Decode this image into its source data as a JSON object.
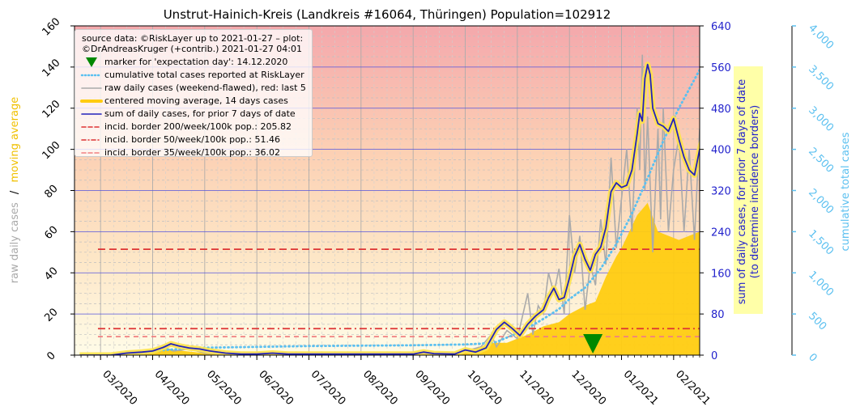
{
  "chart_data": {
    "type": "line",
    "title": "Unstrut-Hainich-Kreis (Landkreis #16064, Thüringen) Population=102912",
    "xlabel": "",
    "x_tick_labels": [
      "03/2020",
      "04/2020",
      "05/2020",
      "06/2020",
      "07/2020",
      "08/2020",
      "09/2020",
      "10/2020",
      "11/2020",
      "12/2020",
      "01/2021",
      "02/2021"
    ],
    "x_range_months": [
      -0.5,
      11.5
    ],
    "left_axis": {
      "label_raw": "raw daily cases",
      "label_sep": "/",
      "label_avg": "moving average",
      "ylim": [
        0,
        160
      ],
      "ticks": [
        0,
        20,
        40,
        60,
        80,
        100,
        120,
        140,
        160
      ]
    },
    "right_axis_1": {
      "label_line1": "sum of daily cases, for prior 7 days of date",
      "label_line2": "(to determine incidence borders)",
      "ylim": [
        0,
        640
      ],
      "ticks": [
        0,
        80,
        160,
        240,
        320,
        400,
        480,
        560,
        640
      ],
      "color": "#2222cc"
    },
    "right_axis_2": {
      "label": "cumulative total cases",
      "ylim": [
        0,
        4000
      ],
      "ticks": [
        0,
        500,
        1000,
        1500,
        2000,
        2500,
        3000,
        3500,
        4000
      ],
      "tick_labels": [
        "0",
        "500",
        "1,000",
        "1,500",
        "2,000",
        "2,500",
        "3,000",
        "3,500",
        "4,000"
      ],
      "color": "#5bc0f0"
    },
    "legend": {
      "source_line1": "source data: ©RiskLayer up to 2021-01-27 – plot:",
      "source_line2": "©DrAndreasKruger (+contrib.) 2021-01-27 04:01",
      "entries": [
        {
          "label": "marker for 'expectation day': 14.12.2020",
          "color": "#008800",
          "kind": "triangle"
        },
        {
          "label": "cumulative total cases reported at RiskLayer",
          "color": "#5bc0f0",
          "kind": "dotted"
        },
        {
          "label": "raw daily cases (weekend-flawed), red: last 5",
          "color": "#aaaaaa",
          "kind": "line"
        },
        {
          "label": "centered moving average, 14 days cases",
          "color": "#ffcc11",
          "kind": "thick"
        },
        {
          "label": "sum of daily cases, for prior 7 days of date",
          "color": "#2222bb",
          "kind": "line"
        },
        {
          "label": "incid. border 200/week/100k pop.: 205.82",
          "color": "#dd3333",
          "kind": "dashed"
        },
        {
          "label": "incid. border 50/week/100k pop.: 51.46",
          "color": "#dd3333",
          "kind": "dashdot"
        },
        {
          "label": "incid. border 35/week/100k pop.: 36.02",
          "color": "#f08080",
          "kind": "dashed"
        }
      ]
    },
    "incidence_borders_7day_sum": [
      205.82,
      51.46,
      36.02
    ],
    "expectation_day_month": 9.45,
    "series": [
      {
        "name": "sum of daily cases, for prior 7 days of date",
        "axis": "right_1",
        "color": "#2222bb",
        "points": [
          [
            -0.4,
            0
          ],
          [
            0.2,
            0
          ],
          [
            0.5,
            4
          ],
          [
            0.8,
            6
          ],
          [
            1.0,
            8
          ],
          [
            1.2,
            15
          ],
          [
            1.35,
            22
          ],
          [
            1.5,
            18
          ],
          [
            1.7,
            14
          ],
          [
            1.9,
            12
          ],
          [
            2.1,
            8
          ],
          [
            2.4,
            4
          ],
          [
            2.7,
            2
          ],
          [
            3.0,
            2
          ],
          [
            3.3,
            4
          ],
          [
            3.6,
            2
          ],
          [
            4.0,
            2
          ],
          [
            4.5,
            2
          ],
          [
            5.0,
            2
          ],
          [
            5.5,
            2
          ],
          [
            6.0,
            2
          ],
          [
            6.2,
            6
          ],
          [
            6.4,
            3
          ],
          [
            6.8,
            2
          ],
          [
            7.0,
            10
          ],
          [
            7.2,
            6
          ],
          [
            7.4,
            14
          ],
          [
            7.6,
            50
          ],
          [
            7.75,
            64
          ],
          [
            7.9,
            52
          ],
          [
            8.05,
            38
          ],
          [
            8.2,
            60
          ],
          [
            8.35,
            76
          ],
          [
            8.5,
            88
          ],
          [
            8.6,
            112
          ],
          [
            8.7,
            130
          ],
          [
            8.8,
            108
          ],
          [
            8.9,
            112
          ],
          [
            9.0,
            150
          ],
          [
            9.1,
            192
          ],
          [
            9.2,
            215
          ],
          [
            9.3,
            186
          ],
          [
            9.4,
            165
          ],
          [
            9.5,
            196
          ],
          [
            9.6,
            210
          ],
          [
            9.7,
            248
          ],
          [
            9.75,
            284
          ],
          [
            9.8,
            318
          ],
          [
            9.9,
            335
          ],
          [
            10.0,
            326
          ],
          [
            10.1,
            330
          ],
          [
            10.2,
            360
          ],
          [
            10.3,
            430
          ],
          [
            10.35,
            470
          ],
          [
            10.4,
            455
          ],
          [
            10.45,
            538
          ],
          [
            10.5,
            565
          ],
          [
            10.55,
            545
          ],
          [
            10.6,
            480
          ],
          [
            10.7,
            450
          ],
          [
            10.8,
            445
          ],
          [
            10.9,
            435
          ],
          [
            11.0,
            460
          ],
          [
            11.1,
            420
          ],
          [
            11.2,
            385
          ],
          [
            11.3,
            360
          ],
          [
            11.4,
            350
          ],
          [
            11.5,
            400
          ],
          [
            11.6,
            435
          ],
          [
            11.7,
            410
          ],
          [
            11.8,
            440
          ],
          [
            11.9,
            420
          ],
          [
            12.0,
            445
          ],
          [
            12.1,
            360
          ],
          [
            12.15,
            420
          ],
          [
            12.25,
            270
          ],
          [
            12.35,
            225
          ]
        ]
      },
      {
        "name": "centered moving average, 14 days cases",
        "axis": "left",
        "color": "#ffcc11",
        "points": [
          [
            0.2,
            0
          ],
          [
            0.6,
            1
          ],
          [
            1.0,
            2
          ],
          [
            1.3,
            3
          ],
          [
            1.6,
            2
          ],
          [
            2.0,
            1
          ],
          [
            2.5,
            0.5
          ],
          [
            3.0,
            0.5
          ],
          [
            4.0,
            0.3
          ],
          [
            5.0,
            0.3
          ],
          [
            6.0,
            0.5
          ],
          [
            7.0,
            1
          ],
          [
            7.5,
            6
          ],
          [
            7.8,
            6
          ],
          [
            8.2,
            10
          ],
          [
            8.5,
            14
          ],
          [
            8.8,
            16
          ],
          [
            9.0,
            20
          ],
          [
            9.3,
            24
          ],
          [
            9.5,
            26
          ],
          [
            9.7,
            38
          ],
          [
            9.9,
            48
          ],
          [
            10.0,
            52
          ],
          [
            10.3,
            68
          ],
          [
            10.5,
            74
          ],
          [
            10.7,
            60
          ],
          [
            10.9,
            58
          ],
          [
            11.1,
            56
          ],
          [
            11.3,
            58
          ],
          [
            11.5,
            60
          ],
          [
            11.7,
            62
          ],
          [
            11.9,
            60
          ],
          [
            12.0,
            58
          ],
          [
            12.1,
            52
          ]
        ]
      },
      {
        "name": "raw daily cases (weekend-flawed), red: last 5",
        "axis": "left",
        "color": "#aaaaaa",
        "points": [
          [
            0.2,
            0
          ],
          [
            0.6,
            2
          ],
          [
            0.9,
            1
          ],
          [
            1.2,
            4
          ],
          [
            1.4,
            2
          ],
          [
            1.7,
            3
          ],
          [
            2.0,
            1
          ],
          [
            2.5,
            0
          ],
          [
            3.0,
            1
          ],
          [
            3.5,
            0
          ],
          [
            4.0,
            0
          ],
          [
            5.0,
            0
          ],
          [
            6.0,
            1
          ],
          [
            6.5,
            0
          ],
          [
            7.0,
            2
          ],
          [
            7.3,
            4
          ],
          [
            7.5,
            10
          ],
          [
            7.6,
            4
          ],
          [
            7.8,
            12
          ],
          [
            8.0,
            8
          ],
          [
            8.2,
            30
          ],
          [
            8.3,
            10
          ],
          [
            8.4,
            24
          ],
          [
            8.5,
            20
          ],
          [
            8.6,
            40
          ],
          [
            8.7,
            30
          ],
          [
            8.8,
            42
          ],
          [
            8.9,
            20
          ],
          [
            9.0,
            68
          ],
          [
            9.1,
            40
          ],
          [
            9.2,
            58
          ],
          [
            9.3,
            22
          ],
          [
            9.4,
            44
          ],
          [
            9.5,
            34
          ],
          [
            9.6,
            66
          ],
          [
            9.7,
            44
          ],
          [
            9.8,
            96
          ],
          [
            9.9,
            52
          ],
          [
            10.0,
            76
          ],
          [
            10.1,
            100
          ],
          [
            10.2,
            60
          ],
          [
            10.3,
            120
          ],
          [
            10.35,
            90
          ],
          [
            10.4,
            146
          ],
          [
            10.45,
            80
          ],
          [
            10.5,
            116
          ],
          [
            10.6,
            50
          ],
          [
            10.7,
            110
          ],
          [
            10.75,
            66
          ],
          [
            10.8,
            120
          ],
          [
            10.9,
            60
          ],
          [
            11.0,
            90
          ],
          [
            11.1,
            106
          ],
          [
            11.2,
            60
          ],
          [
            11.3,
            100
          ],
          [
            11.4,
            56
          ],
          [
            11.5,
            110
          ],
          [
            11.6,
            60
          ],
          [
            11.7,
            98
          ],
          [
            11.8,
            64
          ],
          [
            11.9,
            100
          ],
          [
            12.0,
            60
          ],
          [
            12.05,
            70
          ],
          [
            12.1,
            50
          ]
        ]
      },
      {
        "name": "raw daily cases last 5 (red)",
        "axis": "left",
        "color": "#f08080",
        "points": [
          [
            12.1,
            50
          ],
          [
            12.15,
            28
          ],
          [
            12.2,
            10
          ],
          [
            12.25,
            20
          ],
          [
            12.3,
            6
          ]
        ]
      },
      {
        "name": "cumulative total cases reported at RiskLayer",
        "axis": "right_2",
        "color": "#5bc0f0",
        "points": [
          [
            0.2,
            0
          ],
          [
            0.8,
            20
          ],
          [
            1.2,
            60
          ],
          [
            1.6,
            80
          ],
          [
            2.0,
            90
          ],
          [
            3.0,
            100
          ],
          [
            4.0,
            110
          ],
          [
            5.0,
            115
          ],
          [
            6.0,
            120
          ],
          [
            7.0,
            130
          ],
          [
            7.3,
            140
          ],
          [
            7.6,
            160
          ],
          [
            7.9,
            240
          ],
          [
            8.2,
            330
          ],
          [
            8.5,
            440
          ],
          [
            8.8,
            560
          ],
          [
            9.0,
            680
          ],
          [
            9.3,
            820
          ],
          [
            9.6,
            1050
          ],
          [
            9.9,
            1350
          ],
          [
            10.2,
            1720
          ],
          [
            10.5,
            2150
          ],
          [
            10.8,
            2600
          ],
          [
            11.1,
            3000
          ],
          [
            11.4,
            3350
          ],
          [
            11.7,
            3700
          ],
          [
            12.0,
            3900
          ],
          [
            12.2,
            3950
          ]
        ]
      }
    ]
  }
}
